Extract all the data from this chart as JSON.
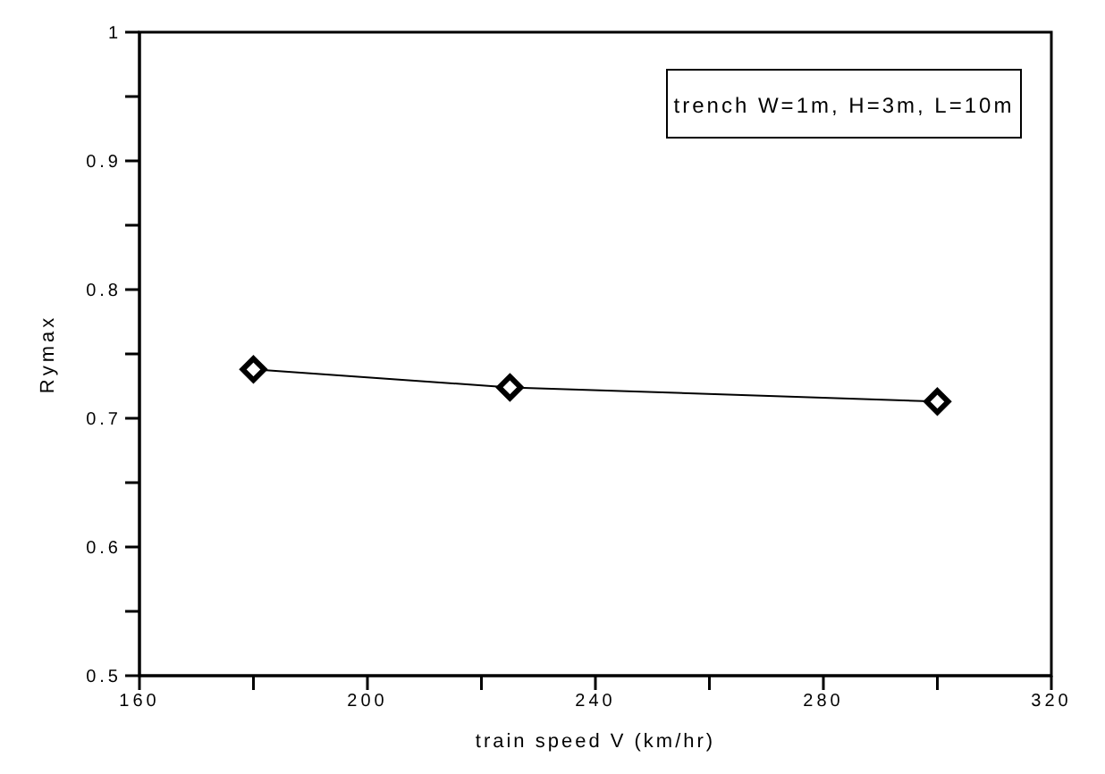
{
  "chart_data": {
    "type": "line",
    "xlabel": "train speed V (km/hr)",
    "ylabel": "Rymax",
    "x": [
      180,
      225,
      300
    ],
    "series": [
      {
        "color": "#000000",
        "values": [
          0.738,
          0.724,
          0.713
        ]
      }
    ],
    "xlim": [
      160,
      320
    ],
    "xticks": [
      160,
      {
        "value": 180,
        "label": null
      },
      200,
      {
        "value": 220,
        "label": null
      },
      240,
      {
        "value": 260,
        "label": null
      },
      280,
      {
        "value": 300,
        "label": null
      },
      320
    ],
    "ylim": [
      0.5,
      1
    ],
    "yticks": [
      0.5,
      {
        "value": 0.55,
        "label": null
      },
      0.6,
      {
        "value": 0.65,
        "label": null
      },
      0.7,
      {
        "value": 0.75,
        "label": null
      },
      0.8,
      {
        "value": 0.85,
        "label": null
      },
      0.9,
      {
        "value": 0.95,
        "label": null
      },
      1
    ],
    "annotations": [
      "trench W=1m, H=3m, L=10m"
    ],
    "marker": "diamond",
    "line_style": "solid",
    "grid": false,
    "legend": false
  }
}
